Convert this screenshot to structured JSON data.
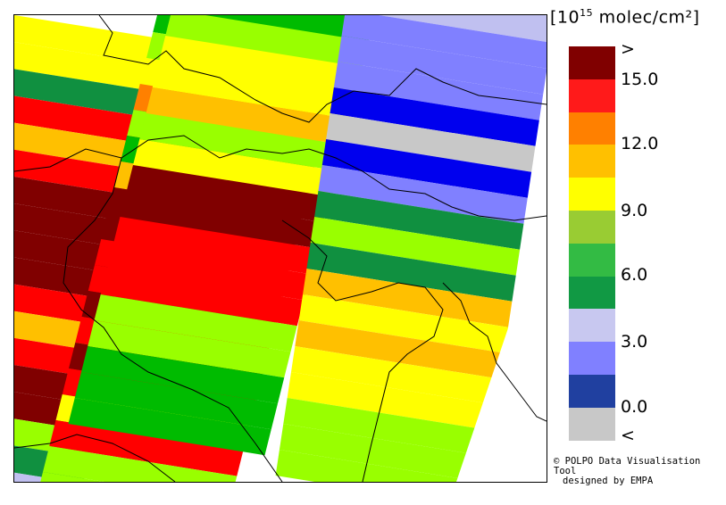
{
  "colorbar": {
    "unit_prefix": "[10",
    "unit_exp": "15",
    "unit_suffix": " molec/cm²]",
    "colors": [
      "#800000",
      "#ff1a1a",
      "#ff8000",
      "#ffc000",
      "#ffff00",
      "#99cc33",
      "#33bb44",
      "#119944",
      "#c8c8f0",
      "#8080ff",
      "#2040a0",
      "#c8c8c8"
    ],
    "labels": [
      ">",
      "15.0",
      "12.0",
      "9.0",
      "6.0",
      "3.0",
      "0.0",
      "<"
    ]
  },
  "credit": {
    "line1": "© POLPO Data Visualisation Tool",
    "line2": "designed by EMPA"
  },
  "map_legend_colors": {
    "darkred": "#800000",
    "red": "#ff0000",
    "orange": "#ffc000",
    "darkorange": "#ff8000",
    "yellow": "#ffff00",
    "lime": "#99ff00",
    "green": "#00bb00",
    "darkgreen": "#109040",
    "lavender": "#c0c0f0",
    "periwinkle": "#8080ff",
    "blue": "#0000ee",
    "gray": "#c8c8c8"
  },
  "swaths": {
    "west": [
      "yellow",
      "yellow",
      "darkgreen",
      "red",
      "orange",
      "red",
      "darkred",
      "darkred",
      "darkred",
      "darkred",
      "red",
      "orange",
      "red",
      "darkred",
      "darkred",
      "lime",
      "darkgreen",
      "lavender"
    ],
    "mid": [
      "green",
      "lime",
      "yellow",
      "darkorange",
      "lime",
      "green",
      "orange",
      "darkred",
      "darkred",
      "red",
      "red",
      "darkred",
      "red",
      "darkred",
      "red",
      "yellow",
      "red",
      "lime",
      "lime"
    ],
    "center": [
      "green",
      "lime",
      "yellow",
      "yellow",
      "orange",
      "lime",
      "yellow",
      "darkred",
      "darkred",
      "red",
      "red",
      "red",
      "lime",
      "lime",
      "green",
      "green",
      "green"
    ],
    "east": [
      "lavender",
      "periwinkle",
      "periwinkle",
      "periwinkle",
      "blue",
      "gray",
      "blue",
      "periwinkle",
      "darkgreen",
      "lime",
      "darkgreen",
      "orange",
      "yellow",
      "orange",
      "yellow",
      "yellow",
      "lime",
      "lime",
      "lime"
    ]
  }
}
